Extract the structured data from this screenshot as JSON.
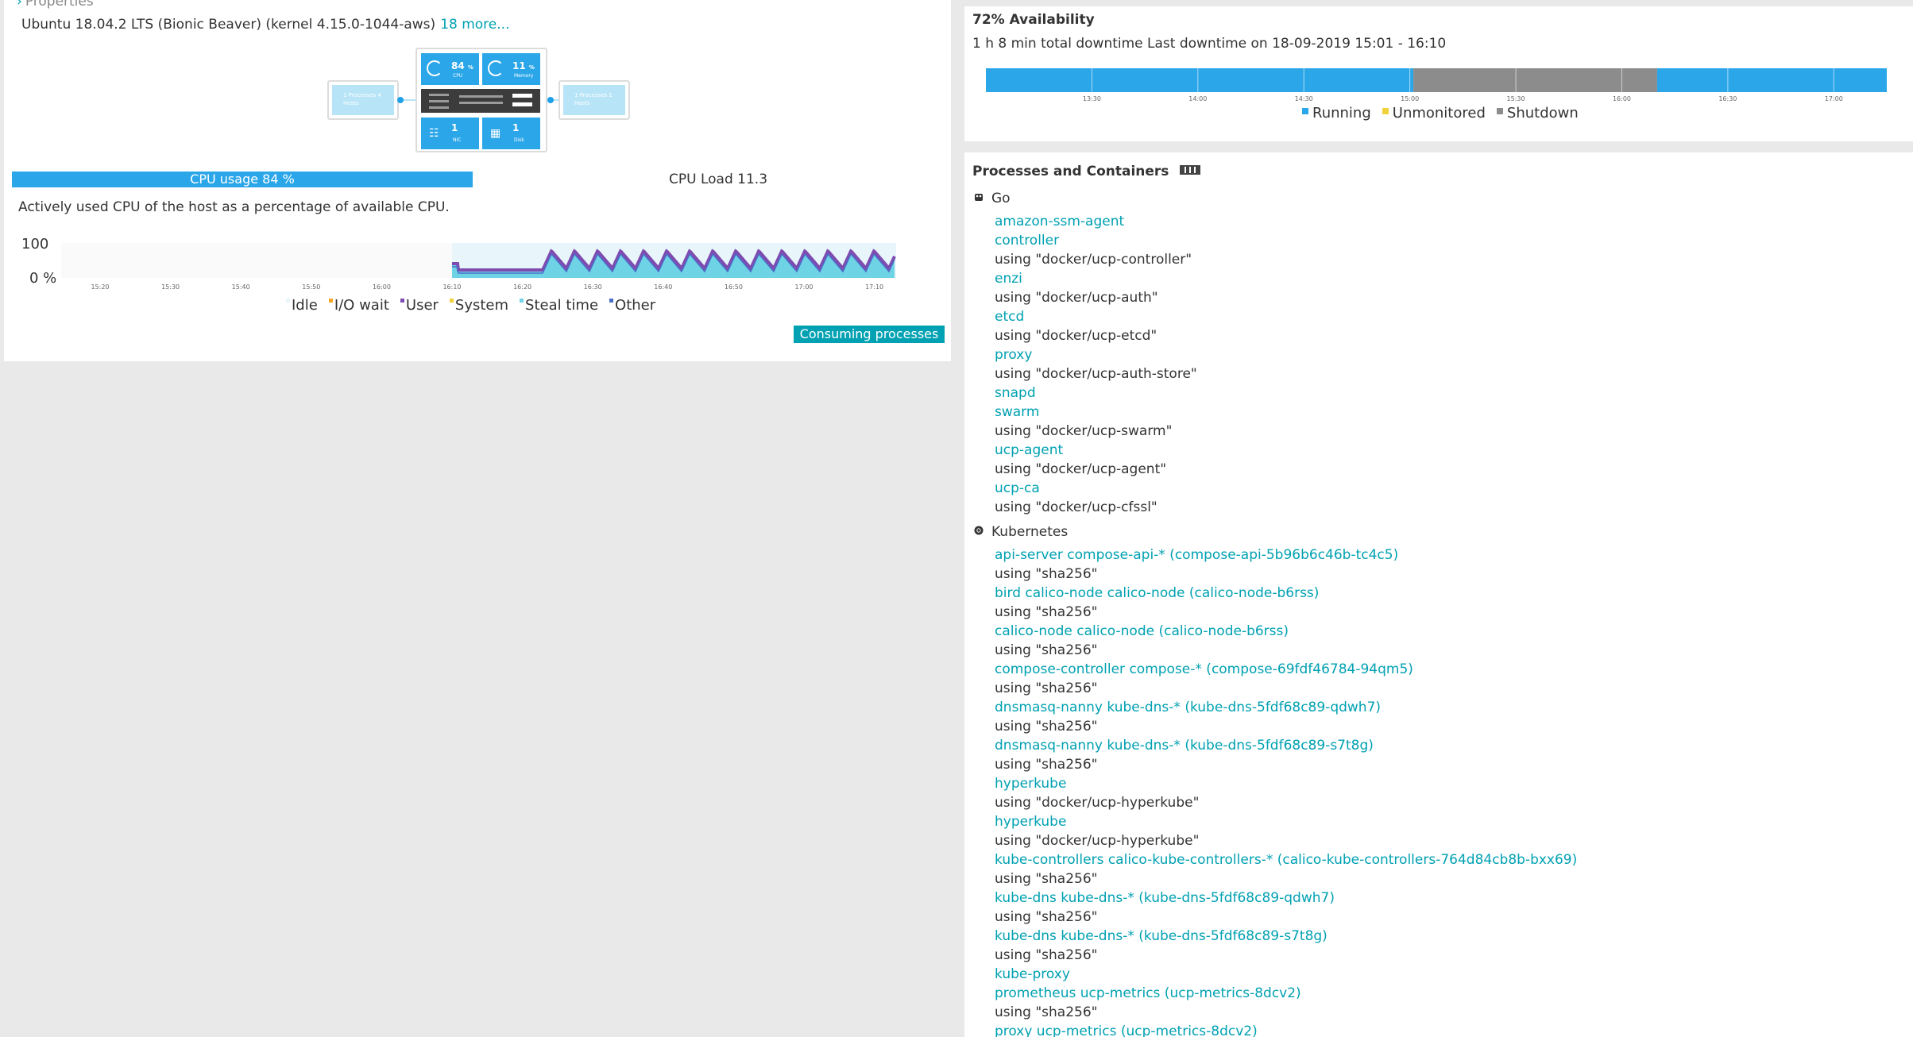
{
  "properties": {
    "label": "Properties",
    "os": "Ubuntu 18.04.2 LTS (Bionic Beaver) (kernel 4.15.0-1044-aws)",
    "more_link": "18 more..."
  },
  "diagram": {
    "left_node": "1 Processes 4 Hosts",
    "right_node": "1 Processes 1 Hosts",
    "cpu_value": "84",
    "cpu_unit": "%",
    "cpu_label": "CPU",
    "memory_value": "11",
    "memory_unit": "%",
    "memory_label": "Memory",
    "nic_value": "1",
    "nic_label": "NIC",
    "disk_value": "1",
    "disk_label": "Disk"
  },
  "cpu": {
    "usage_label": "CPU usage 84 %",
    "load_label": "CPU Load 11.3",
    "description": "Actively used CPU of the host as a percentage of available CPU.",
    "consuming_button": "Consuming processes"
  },
  "chart_data": [
    {
      "type": "area",
      "ylabels": [
        "100",
        "0 %"
      ],
      "ylim": [
        0,
        100
      ],
      "x_ticks": [
        "15:20",
        "15:30",
        "15:40",
        "15:50",
        "16:00",
        "16:10",
        "16:20",
        "16:30",
        "16:40",
        "16:50",
        "17:00",
        "17:10"
      ],
      "series": [
        {
          "name": "Idle",
          "color": "#e8f6fb"
        },
        {
          "name": "I/O wait",
          "color": "#f5a623"
        },
        {
          "name": "User",
          "color": "#7e4bb0"
        },
        {
          "name": "System",
          "color": "#f2d23c"
        },
        {
          "name": "Steal time",
          "color": "#6fd3e6"
        },
        {
          "name": "Other",
          "color": "#4a6ec8"
        }
      ]
    },
    {
      "type": "bar",
      "x_ticks": [
        "13:30",
        "14:00",
        "14:30",
        "15:00",
        "15:30",
        "16:00",
        "16:30",
        "17:00"
      ],
      "segments": [
        {
          "state": "Running",
          "start": "13:00",
          "end": "15:01"
        },
        {
          "state": "Shutdown",
          "start": "15:01",
          "end": "16:10"
        },
        {
          "state": "Running",
          "start": "16:10",
          "end": "17:15"
        }
      ],
      "legend": [
        {
          "name": "Running",
          "color": "#2ba6e9"
        },
        {
          "name": "Unmonitored",
          "color": "#f2d23c"
        },
        {
          "name": "Shutdown",
          "color": "#8c8c8c"
        }
      ]
    }
  ],
  "availability": {
    "title": "72% Availability",
    "summary": "1 h 8 min total downtime Last downtime on 18-09-2019 15:01 - 16:10"
  },
  "processes": {
    "title": "Processes and Containers",
    "go": {
      "label": "Go",
      "items": [
        {
          "text": "amazon-ssm-agent",
          "link": true
        },
        {
          "text": "controller",
          "link": true
        },
        {
          "text": "using \"docker/ucp-controller\"",
          "link": false
        },
        {
          "text": "enzi",
          "link": true
        },
        {
          "text": "using \"docker/ucp-auth\"",
          "link": false
        },
        {
          "text": "etcd",
          "link": true
        },
        {
          "text": "using \"docker/ucp-etcd\"",
          "link": false
        },
        {
          "text": "proxy",
          "link": true
        },
        {
          "text": "using \"docker/ucp-auth-store\"",
          "link": false
        },
        {
          "text": "snapd",
          "link": true
        },
        {
          "text": "swarm",
          "link": true
        },
        {
          "text": "using \"docker/ucp-swarm\"",
          "link": false
        },
        {
          "text": "ucp-agent",
          "link": true
        },
        {
          "text": "using \"docker/ucp-agent\"",
          "link": false
        },
        {
          "text": "ucp-ca",
          "link": true
        },
        {
          "text": "using \"docker/ucp-cfssl\"",
          "link": false
        }
      ]
    },
    "kubernetes": {
      "label": "Kubernetes",
      "items": [
        {
          "text": "api-server compose-api-* (compose-api-5b96b6c46b-tc4c5)",
          "link": true
        },
        {
          "text": "using \"sha256\"",
          "link": false
        },
        {
          "text": "bird calico-node calico-node (calico-node-b6rss)",
          "link": true
        },
        {
          "text": "using \"sha256\"",
          "link": false
        },
        {
          "text": "calico-node calico-node (calico-node-b6rss)",
          "link": true
        },
        {
          "text": "using \"sha256\"",
          "link": false
        },
        {
          "text": "compose-controller compose-* (compose-69fdf46784-94qm5)",
          "link": true
        },
        {
          "text": "using \"sha256\"",
          "link": false
        },
        {
          "text": "dnsmasq-nanny kube-dns-* (kube-dns-5fdf68c89-qdwh7)",
          "link": true
        },
        {
          "text": "using \"sha256\"",
          "link": false
        },
        {
          "text": "dnsmasq-nanny kube-dns-* (kube-dns-5fdf68c89-s7t8g)",
          "link": true
        },
        {
          "text": "using \"sha256\"",
          "link": false
        },
        {
          "text": "hyperkube",
          "link": true
        },
        {
          "text": "using \"docker/ucp-hyperkube\"",
          "link": false
        },
        {
          "text": "hyperkube",
          "link": true
        },
        {
          "text": "using \"docker/ucp-hyperkube\"",
          "link": false
        },
        {
          "text": "kube-controllers calico-kube-controllers-* (calico-kube-controllers-764d84cb8b-bxx69)",
          "link": true
        },
        {
          "text": "using \"sha256\"",
          "link": false
        },
        {
          "text": "kube-dns kube-dns-* (kube-dns-5fdf68c89-qdwh7)",
          "link": true
        },
        {
          "text": "using \"sha256\"",
          "link": false
        },
        {
          "text": "kube-dns kube-dns-* (kube-dns-5fdf68c89-s7t8g)",
          "link": true
        },
        {
          "text": "using \"sha256\"",
          "link": false
        },
        {
          "text": "kube-proxy",
          "link": true
        },
        {
          "text": "prometheus ucp-metrics (ucp-metrics-8dcv2)",
          "link": true
        },
        {
          "text": "using \"sha256\"",
          "link": false
        },
        {
          "text": "proxy ucp-metrics (ucp-metrics-8dcv2)",
          "link": true
        }
      ]
    }
  }
}
